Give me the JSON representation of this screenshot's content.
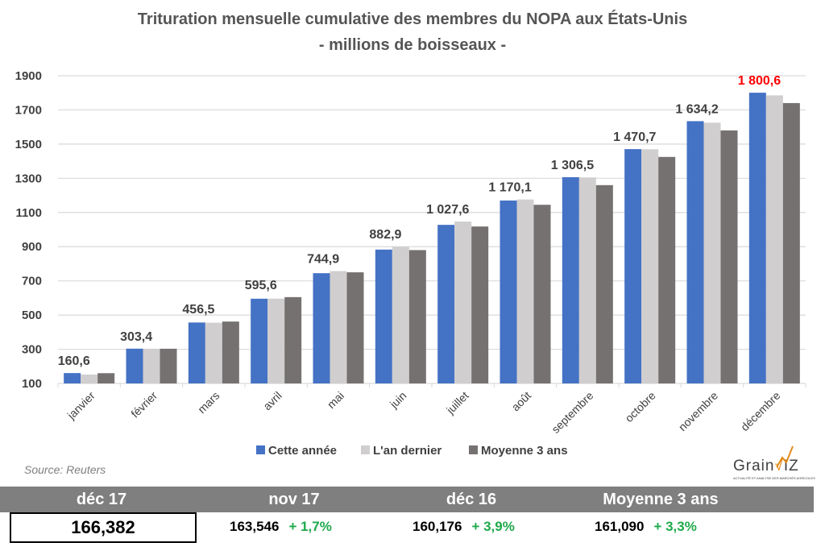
{
  "chart_data": {
    "type": "bar",
    "title": "Trituration mensuelle cumulative des membres du NOPA aux États-Unis",
    "subtitle": "- millions de boisseaux -",
    "xlabel": "",
    "ylabel": "",
    "ylim": [
      100,
      1900
    ],
    "yticks": [
      100,
      300,
      500,
      700,
      900,
      1100,
      1300,
      1500,
      1700,
      1900
    ],
    "grid": true,
    "legend_position": "bottom",
    "categories": [
      "janvier",
      "février",
      "mars",
      "avril",
      "mai",
      "juin",
      "juillet",
      "août",
      "septembre",
      "octobre",
      "novembre",
      "décembre"
    ],
    "series": [
      {
        "name": "Cette année",
        "color": "#4472c4",
        "values": [
          160.6,
          303.4,
          456.5,
          595.6,
          744.9,
          882.9,
          1027.6,
          1170.1,
          1306.5,
          1470.7,
          1634.2,
          1800.6
        ]
      },
      {
        "name": "L'an dernier",
        "color": "#d0cece",
        "values": [
          152,
          303,
          455,
          596,
          757,
          900,
          1047,
          1176,
          1305,
          1470,
          1625,
          1785
        ]
      },
      {
        "name": "Moyenne 3 ans",
        "color": "#767171",
        "values": [
          160,
          303,
          462,
          605,
          750,
          880,
          1018,
          1145,
          1260,
          1425,
          1580,
          1740
        ]
      }
    ],
    "data_labels": [
      "160,6",
      "303,4",
      "456,5",
      "595,6",
      "744,9",
      "882,9",
      "1 027,6",
      "1 170,1",
      "1 306,5",
      "1 470,7",
      "1 634,2",
      "1 800,6"
    ],
    "highlight_label_index": 11,
    "highlight_color": "#ff0000",
    "label_color": "#404040"
  },
  "source": "Source: Reuters",
  "logo": {
    "name": "GrainWiz",
    "text": "Grain",
    "suffix": "IZ",
    "tagline": "ACTUALITÉ ET ANALYSE DES MARCHÉS AGRICOLES"
  },
  "stats": {
    "headers": [
      "déc 17",
      "nov 17",
      "déc 16",
      "Moyenne 3 ans"
    ],
    "main_value": "166,382",
    "comparisons": [
      {
        "value": "163,546",
        "change": "+ 1,7%"
      },
      {
        "value": "160,176",
        "change": "+ 3,9%"
      },
      {
        "value": "161,090",
        "change": "+ 3,3%"
      }
    ],
    "change_color": "#1faa4b"
  }
}
